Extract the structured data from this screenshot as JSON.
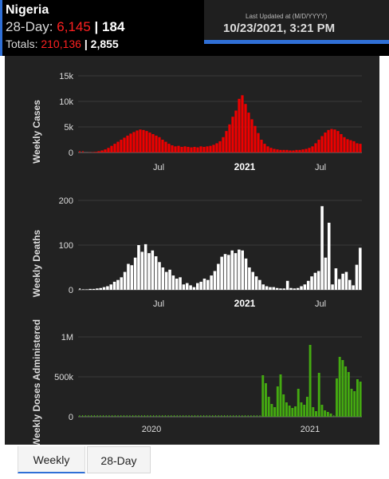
{
  "header": {
    "country": "Nigeria",
    "day28_label": "28-Day:",
    "day28_cases": "6,145",
    "day28_sep": "|",
    "day28_deaths": "184",
    "totals_label": "Totals:",
    "totals_cases": "210,136",
    "totals_sep": "|",
    "totals_deaths": "2,855",
    "last_updated_label": "Last Updated at (M/D/YYYY)",
    "last_updated_value": "10/23/2021, 3:21 PM"
  },
  "colors": {
    "cases": "#ee0000",
    "deaths": "#ffffff",
    "doses": "#44aa11",
    "accent": "#2f6fd6"
  },
  "tabs": [
    {
      "label": "Weekly",
      "active": true
    },
    {
      "label": "28-Day",
      "active": false
    }
  ],
  "chart_data": [
    {
      "type": "bar",
      "ylabel": "Weekly Cases",
      "ylim": [
        0,
        15000
      ],
      "yticks": [
        "0",
        "5k",
        "10k",
        "15k"
      ],
      "xticks": [
        "Jul",
        "2021",
        "Jul"
      ],
      "values": [
        0,
        0,
        10,
        30,
        60,
        120,
        250,
        400,
        600,
        900,
        1300,
        1700,
        2100,
        2500,
        2900,
        3300,
        3700,
        4000,
        4300,
        4500,
        4400,
        4200,
        3900,
        3600,
        3300,
        3000,
        2500,
        2100,
        1700,
        1400,
        1200,
        1300,
        1100,
        1200,
        1100,
        1000,
        1100,
        1000,
        1200,
        1100,
        1200,
        1300,
        1500,
        1800,
        2200,
        3000,
        4200,
        5500,
        7000,
        8200,
        10500,
        11200,
        9500,
        7800,
        6500,
        5200,
        3800,
        2500,
        1700,
        1200,
        900,
        700,
        600,
        500,
        500,
        500,
        400,
        400,
        500,
        500,
        600,
        700,
        900,
        1200,
        1800,
        2500,
        3200,
        3900,
        4400,
        4600,
        4500,
        4200,
        3600,
        3000,
        2600,
        2400,
        2200,
        1800,
        1700
      ]
    },
    {
      "type": "bar",
      "ylabel": "Weekly Deaths",
      "ylim": [
        0,
        200
      ],
      "yticks": [
        "0",
        "100",
        "200"
      ],
      "xticks": [
        "Jul",
        "2021",
        "Jul"
      ],
      "values": [
        0,
        1,
        1,
        2,
        2,
        3,
        4,
        6,
        8,
        12,
        18,
        22,
        28,
        40,
        58,
        55,
        72,
        100,
        85,
        102,
        82,
        88,
        75,
        62,
        50,
        40,
        45,
        32,
        25,
        28,
        12,
        15,
        10,
        6,
        15,
        18,
        25,
        22,
        32,
        42,
        58,
        74,
        80,
        78,
        88,
        82,
        90,
        88,
        70,
        50,
        40,
        30,
        22,
        12,
        8,
        6,
        6,
        4,
        3,
        3,
        20,
        4,
        3,
        4,
        8,
        12,
        20,
        30,
        38,
        42,
        187,
        72,
        150,
        12,
        48,
        24,
        36,
        40,
        22,
        10,
        56,
        94
      ]
    },
    {
      "type": "bar",
      "ylabel": "Weekly Doses Administered",
      "ylim": [
        0,
        1000000
      ],
      "yticks": [
        "0",
        "500k",
        "1M"
      ],
      "xticks": [
        "2020",
        "2021"
      ],
      "values": [
        0,
        0,
        0,
        0,
        0,
        0,
        0,
        0,
        0,
        0,
        0,
        0,
        0,
        0,
        0,
        0,
        0,
        0,
        0,
        0,
        0,
        0,
        0,
        0,
        0,
        0,
        0,
        0,
        0,
        0,
        0,
        0,
        0,
        0,
        0,
        0,
        0,
        0,
        0,
        0,
        0,
        0,
        0,
        0,
        0,
        0,
        0,
        0,
        0,
        0,
        0,
        0,
        0,
        0,
        0,
        0,
        0,
        0,
        0,
        0,
        0,
        0,
        520000,
        420000,
        250000,
        160000,
        120000,
        380000,
        530000,
        280000,
        180000,
        140000,
        110000,
        130000,
        350000,
        180000,
        150000,
        250000,
        900000,
        120000,
        70000,
        550000,
        150000,
        80000,
        60000,
        40000,
        0,
        480000,
        750000,
        710000,
        630000,
        560000,
        350000,
        320000,
        470000,
        440000
      ]
    }
  ]
}
